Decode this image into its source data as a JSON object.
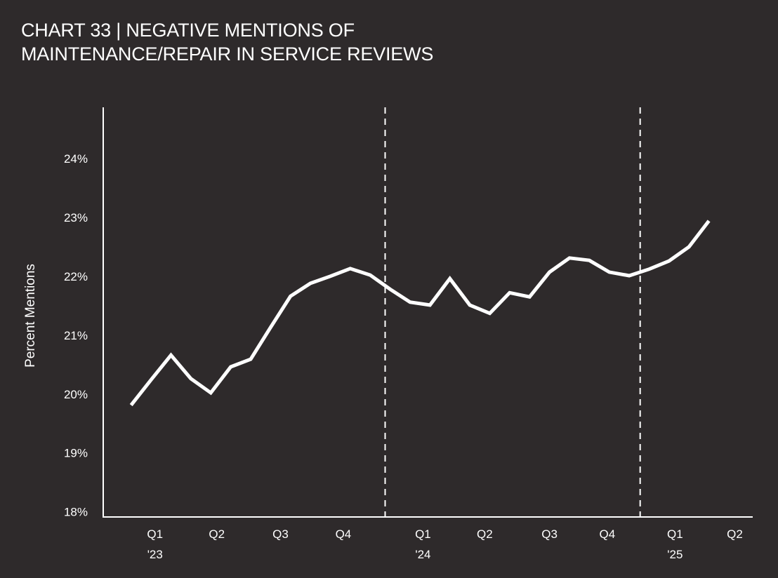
{
  "chart_data": {
    "type": "line",
    "title_lines": [
      "CHART 33 | NEGATIVE MENTIONS OF",
      "MAINTENANCE/REPAIR IN SERVICE REVIEWS"
    ],
    "ylabel": "Percent Mentions",
    "xlabel": "",
    "ylim": [
      17.9,
      24.86
    ],
    "xlim": [
      -1.4,
      31.2
    ],
    "yticks": [
      {
        "value": 18,
        "label": "18%"
      },
      {
        "value": 19,
        "label": "19%"
      },
      {
        "value": 20,
        "label": "20%"
      },
      {
        "value": 21,
        "label": "21%"
      },
      {
        "value": 22,
        "label": "22%"
      },
      {
        "value": 23,
        "label": "23%"
      },
      {
        "value": 24,
        "label": "24%"
      }
    ],
    "xticks": [
      {
        "pos": 1.2,
        "label": "Q1",
        "year": "'23"
      },
      {
        "pos": 4.3,
        "label": "Q2"
      },
      {
        "pos": 7.5,
        "label": "Q3"
      },
      {
        "pos": 10.65,
        "label": "Q4"
      },
      {
        "pos": 14.65,
        "label": "Q1",
        "year": "'24"
      },
      {
        "pos": 17.75,
        "label": "Q2"
      },
      {
        "pos": 21.0,
        "label": "Q3"
      },
      {
        "pos": 23.9,
        "label": "Q4"
      },
      {
        "pos": 27.3,
        "label": "Q1",
        "year": "'25"
      },
      {
        "pos": 30.3,
        "label": "Q2"
      }
    ],
    "year_dividers": [
      12.75,
      25.55
    ],
    "grid": false,
    "series": [
      {
        "name": "Negative mentions",
        "color": "#ffffff",
        "x": [
          0,
          1,
          2,
          3,
          4,
          5,
          6,
          7,
          8,
          9,
          10,
          11,
          12,
          13,
          14,
          15,
          16,
          17,
          18,
          19,
          20,
          21,
          22,
          23,
          24,
          25,
          26,
          27,
          28,
          29
        ],
        "values": [
          19.8,
          20.23,
          20.65,
          20.25,
          20.01,
          20.45,
          20.58,
          21.12,
          21.65,
          21.87,
          21.99,
          22.12,
          22.01,
          21.77,
          21.55,
          21.5,
          21.95,
          21.5,
          21.36,
          21.71,
          21.64,
          22.06,
          22.3,
          22.26,
          22.06,
          22.0,
          22.11,
          22.25,
          22.49,
          22.93
        ]
      }
    ]
  }
}
